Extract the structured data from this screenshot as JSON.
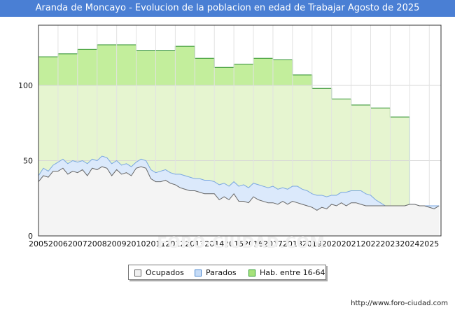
{
  "title": "Aranda de Moncayo - Evolucion de la poblacion en edad de Trabajar Agosto de 2025",
  "source": "http://www.foro-ciudad.com",
  "watermark": "FORO-CIUDAD.COM",
  "legend": [
    {
      "label": "Ocupados",
      "color": "#f0f0f0",
      "border": "#666666"
    },
    {
      "label": "Parados",
      "color": "#c6dcf7",
      "border": "#4a86cf"
    },
    {
      "label": "Hab. entre 16-64",
      "color": "#a6e27a",
      "border": "#2a9a2a"
    }
  ],
  "chart_data": {
    "type": "area",
    "title": "Aranda de Moncayo - Evolucion de la poblacion en edad de Trabajar Agosto de 2025",
    "xlabel": "",
    "ylabel": "",
    "xlim": [
      2005,
      2025.6
    ],
    "ylim": [
      0,
      140
    ],
    "x_ticks": [
      "2005",
      "2006",
      "2007",
      "2008",
      "2009",
      "2010",
      "2011",
      "2012",
      "2013",
      "2014",
      "2015",
      "2016",
      "2017",
      "2018",
      "2019",
      "2020",
      "2021",
      "2022",
      "2023",
      "2024",
      "2025"
    ],
    "y_ticks": [
      0,
      50,
      100
    ],
    "grid": true,
    "legend_position": "bottom",
    "colors": {
      "hab_fill": "#e6f5d0",
      "hab_fill_above": "#c3ee9c",
      "hab_line": "#2a8f2a",
      "parados_fill": "#dbe9fb",
      "parados_line": "#7aa7e0",
      "ocupados_fill": "#f4f4f4",
      "ocupados_line": "#666666"
    },
    "hab_steps": [
      {
        "x": 2005,
        "value": 119
      },
      {
        "x": 2006,
        "value": 121
      },
      {
        "x": 2007,
        "value": 124
      },
      {
        "x": 2008,
        "value": 127
      },
      {
        "x": 2009,
        "value": 127
      },
      {
        "x": 2010,
        "value": 123
      },
      {
        "x": 2011,
        "value": 123
      },
      {
        "x": 2012,
        "value": 126
      },
      {
        "x": 2013,
        "value": 118
      },
      {
        "x": 2014,
        "value": 112
      },
      {
        "x": 2015,
        "value": 114
      },
      {
        "x": 2016,
        "value": 118
      },
      {
        "x": 2017,
        "value": 117
      },
      {
        "x": 2018,
        "value": 107
      },
      {
        "x": 2019,
        "value": 98
      },
      {
        "x": 2020,
        "value": 91
      },
      {
        "x": 2021,
        "value": 87
      },
      {
        "x": 2022,
        "value": 85
      },
      {
        "x": 2023,
        "value": 79
      },
      {
        "x": 2024,
        "value": 79
      }
    ],
    "hab_end_x": 2024.0,
    "series": [
      {
        "name": "Parados",
        "x": [
          2005.0,
          2005.25,
          2005.5,
          2005.75,
          2006.0,
          2006.25,
          2006.5,
          2006.75,
          2007.0,
          2007.25,
          2007.5,
          2007.75,
          2008.0,
          2008.25,
          2008.5,
          2008.75,
          2009.0,
          2009.25,
          2009.5,
          2009.75,
          2010.0,
          2010.25,
          2010.5,
          2010.75,
          2011.0,
          2011.25,
          2011.5,
          2011.75,
          2012.0,
          2012.25,
          2012.5,
          2012.75,
          2013.0,
          2013.25,
          2013.5,
          2013.75,
          2014.0,
          2014.25,
          2014.5,
          2014.75,
          2015.0,
          2015.25,
          2015.5,
          2015.75,
          2016.0,
          2016.25,
          2016.5,
          2016.75,
          2017.0,
          2017.25,
          2017.5,
          2017.75,
          2018.0,
          2018.25,
          2018.5,
          2018.75,
          2019.0,
          2019.25,
          2019.5,
          2019.75,
          2020.0,
          2020.25,
          2020.5,
          2020.75,
          2021.0,
          2021.25,
          2021.5,
          2021.75,
          2022.0,
          2022.25,
          2022.5,
          2022.75,
          2023.0,
          2023.25,
          2023.5,
          2023.75,
          2024.0,
          2024.25,
          2024.5,
          2024.75,
          2025.0,
          2025.25,
          2025.5
        ],
        "values": [
          40,
          45,
          43,
          47,
          49,
          51,
          48,
          50,
          49,
          50,
          48,
          51,
          50,
          53,
          52,
          48,
          50,
          47,
          48,
          46,
          49,
          51,
          50,
          44,
          42,
          43,
          44,
          42,
          41,
          41,
          40,
          39,
          38,
          38,
          37,
          37,
          36,
          34,
          35,
          33,
          36,
          33,
          34,
          32,
          35,
          34,
          33,
          32,
          33,
          31,
          32,
          31,
          33,
          33,
          31,
          30,
          28,
          27,
          27,
          26,
          27,
          27,
          29,
          29,
          30,
          30,
          30,
          28,
          27,
          24,
          22,
          20,
          20,
          20,
          20,
          20,
          21,
          21,
          20,
          20,
          20,
          20,
          20
        ]
      },
      {
        "name": "Ocupados",
        "x": [
          2005.0,
          2005.25,
          2005.5,
          2005.75,
          2006.0,
          2006.25,
          2006.5,
          2006.75,
          2007.0,
          2007.25,
          2007.5,
          2007.75,
          2008.0,
          2008.25,
          2008.5,
          2008.75,
          2009.0,
          2009.25,
          2009.5,
          2009.75,
          2010.0,
          2010.25,
          2010.5,
          2010.75,
          2011.0,
          2011.25,
          2011.5,
          2011.75,
          2012.0,
          2012.25,
          2012.5,
          2012.75,
          2013.0,
          2013.25,
          2013.5,
          2013.75,
          2014.0,
          2014.25,
          2014.5,
          2014.75,
          2015.0,
          2015.25,
          2015.5,
          2015.75,
          2016.0,
          2016.25,
          2016.5,
          2016.75,
          2017.0,
          2017.25,
          2017.5,
          2017.75,
          2018.0,
          2018.25,
          2018.5,
          2018.75,
          2019.0,
          2019.25,
          2019.5,
          2019.75,
          2020.0,
          2020.25,
          2020.5,
          2020.75,
          2021.0,
          2021.25,
          2021.5,
          2021.75,
          2022.0,
          2022.25,
          2022.5,
          2022.75,
          2023.0,
          2023.25,
          2023.5,
          2023.75,
          2024.0,
          2024.25,
          2024.5,
          2024.75,
          2025.0,
          2025.25,
          2025.5
        ],
        "values": [
          36,
          40,
          39,
          43,
          43,
          45,
          41,
          43,
          42,
          44,
          40,
          45,
          44,
          46,
          45,
          40,
          44,
          41,
          42,
          40,
          45,
          46,
          45,
          38,
          36,
          36,
          37,
          35,
          34,
          32,
          31,
          30,
          30,
          29,
          28,
          28,
          28,
          24,
          26,
          24,
          28,
          23,
          23,
          22,
          26,
          24,
          23,
          22,
          22,
          21,
          23,
          21,
          23,
          22,
          21,
          20,
          19,
          17,
          19,
          18,
          21,
          20,
          22,
          20,
          22,
          22,
          21,
          20,
          20,
          20,
          20,
          20,
          20,
          20,
          20,
          20,
          21,
          21,
          20,
          20,
          19,
          18,
          20
        ]
      }
    ]
  }
}
